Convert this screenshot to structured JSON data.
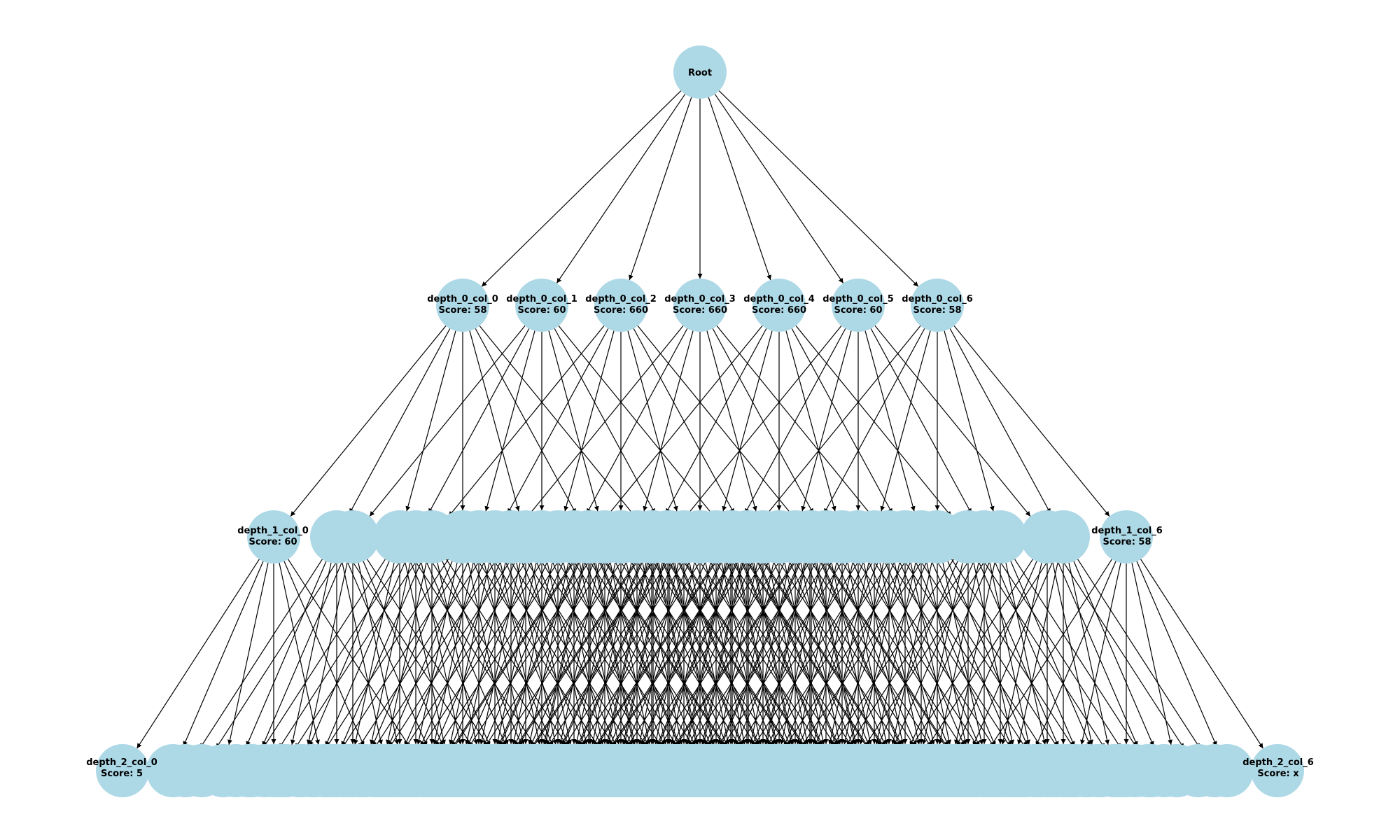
{
  "colors": {
    "node_fill": "#add8e6",
    "edge": "#000000",
    "label": "#000000",
    "background": "#ffffff"
  },
  "root": {
    "label": "Root"
  },
  "level_1": [
    {
      "name": "depth_0_col_0",
      "score": "Score: 58"
    },
    {
      "name": "depth_0_col_1",
      "score": "Score: 60"
    },
    {
      "name": "depth_0_col_2",
      "score": "Score: 660"
    },
    {
      "name": "depth_0_col_3",
      "score": "Score: 660"
    },
    {
      "name": "depth_0_col_4",
      "score": "Score: 660"
    },
    {
      "name": "depth_0_col_5",
      "score": "Score: 60"
    },
    {
      "name": "depth_0_col_6",
      "score": "Score: 58"
    }
  ],
  "level_2_outer": [
    {
      "name": "depth_1_col_0",
      "score": "Score: 60"
    },
    {
      "name": "depth_1_col_6",
      "score": "Score: 58"
    }
  ],
  "level_3_outer": [
    {
      "name": "depth_2_col_0",
      "score": "Score: 5"
    },
    {
      "name": "depth_2_col_6",
      "score": "Score: x"
    }
  ]
}
